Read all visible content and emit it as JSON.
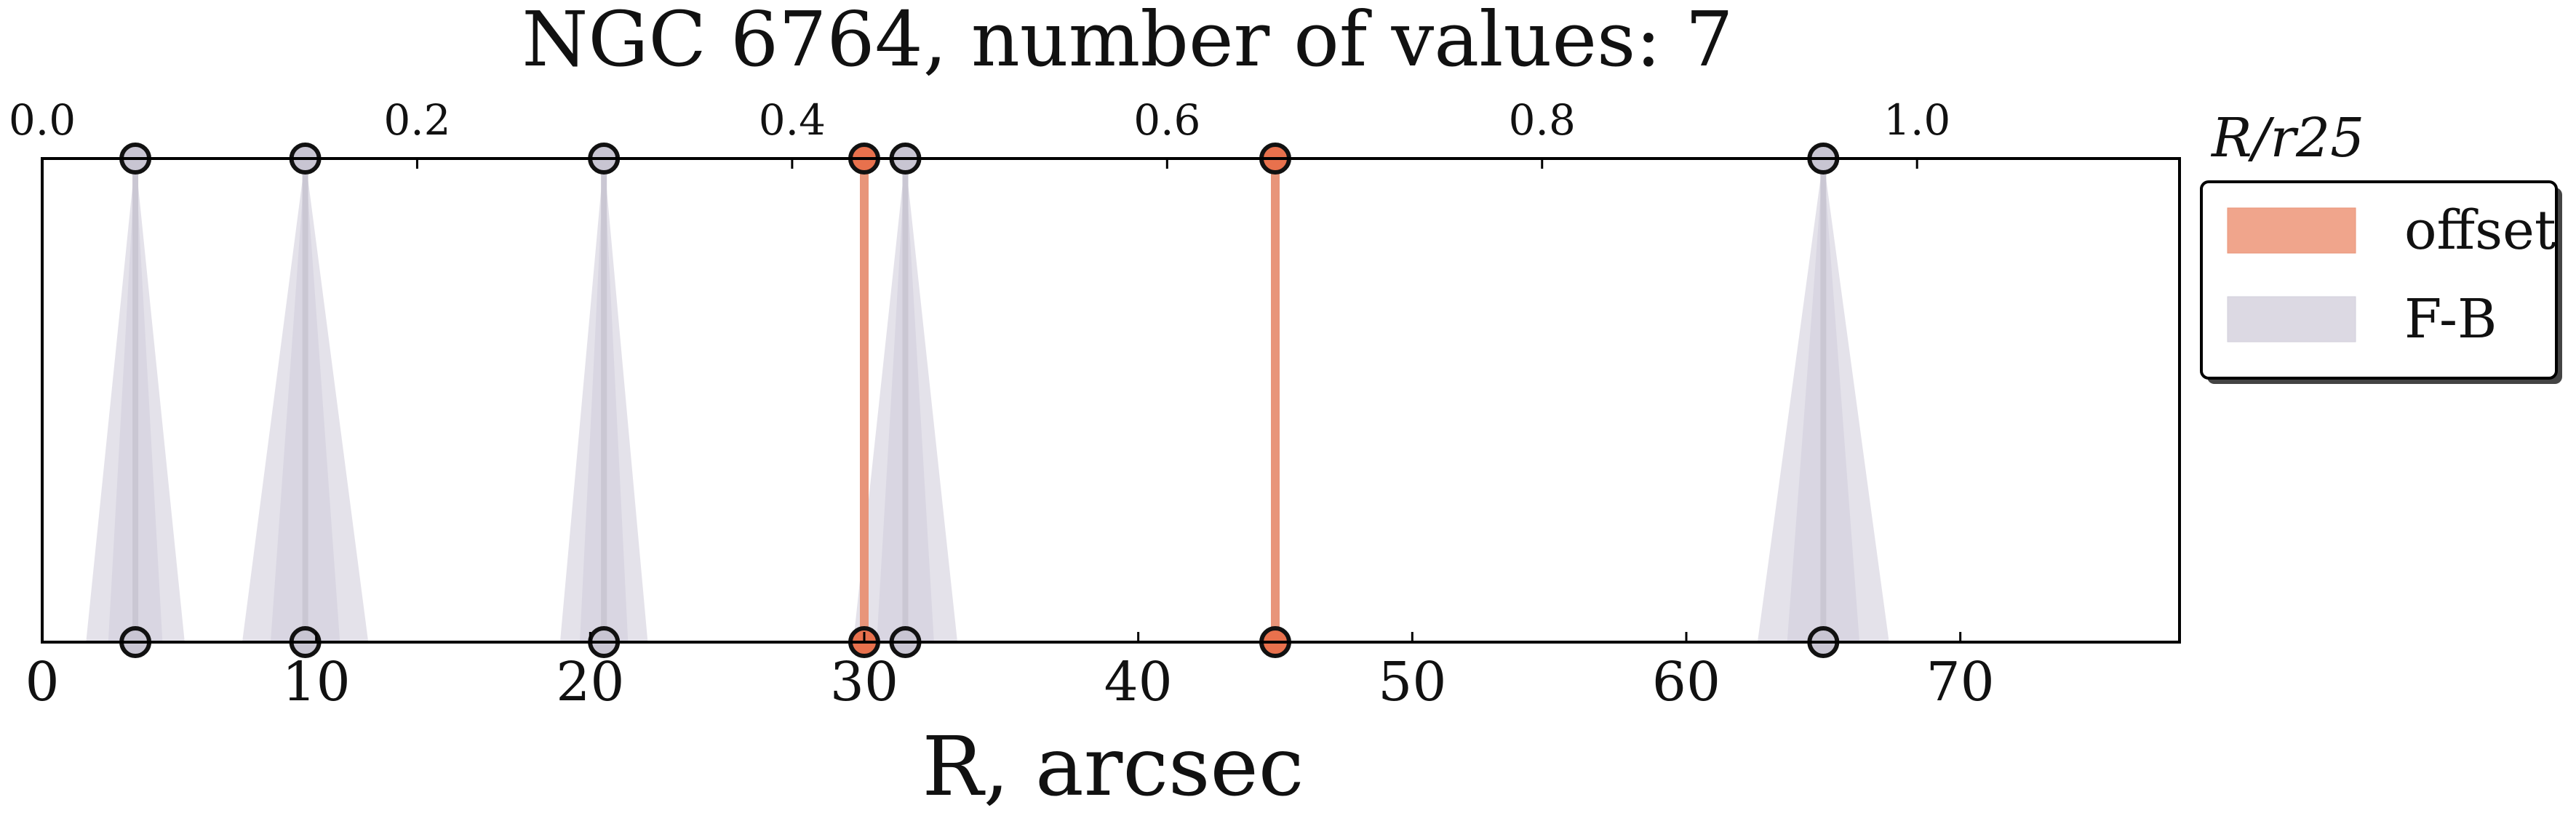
{
  "chart_data": {
    "type": "scatter",
    "title": "NGC 6764, number of values: 7",
    "xlabel": "R, arcsec",
    "top_axis_label": "R/r25",
    "xlim": [
      0,
      78
    ],
    "x_ticks": [
      0,
      10,
      20,
      30,
      40,
      50,
      60,
      70
    ],
    "top_xlim": [
      0.0,
      1.14
    ],
    "top_ticks": [
      "0.0",
      "0.2",
      "0.4",
      "0.6",
      "0.8",
      "1.0"
    ],
    "legend": {
      "position": "outside-right-top",
      "entries": [
        {
          "label": "offset",
          "color": "#f0a58c"
        },
        {
          "label": "F-B",
          "color": "#dcd9e3"
        }
      ]
    },
    "series": [
      {
        "name": "offset",
        "color": "#e8714d",
        "line_color": "#e8957a",
        "x": [
          30.0,
          45.0
        ]
      },
      {
        "name": "F-B",
        "color": "#c8c5d2",
        "line_color": "#cac7d3",
        "x": [
          3.4,
          9.6,
          20.5,
          31.5,
          65.0
        ],
        "x_err": [
          1.8,
          2.3,
          1.6,
          1.9,
          2.4
        ]
      }
    ]
  }
}
